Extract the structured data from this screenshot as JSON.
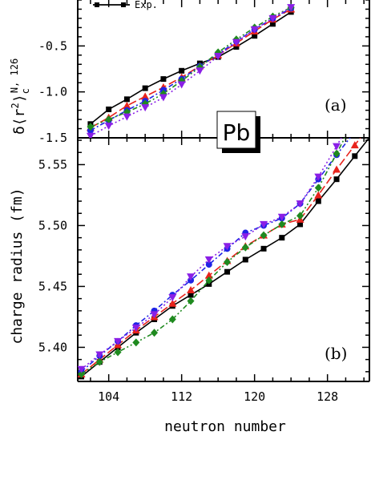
{
  "figure": {
    "element_label": "Pb",
    "xlabel": "neutron number",
    "legend": [
      "Exp."
    ]
  },
  "chart_data": [
    {
      "type": "line",
      "panel_tag": "(a)",
      "ylabel": "δ⟨r²⟩c^N,126",
      "ylabel_main": "δ⟨r",
      "ylabel_sup": "2",
      "ylabel_close": "⟩",
      "ylabel_sub": "c",
      "ylabel_super": "N, 126",
      "xlim": [
        100.6,
        132.6
      ],
      "ylim": [
        -1.5,
        0.0
      ],
      "yticks": [
        "-0.5",
        "-1.0",
        "-1.5"
      ],
      "ytick_values": [
        -0.5,
        -1.0,
        -1.5
      ],
      "series": [
        {
          "name": "Exp.",
          "color": "#000000",
          "marker": "square",
          "dash": "none",
          "x": [
            102,
            104,
            106,
            108,
            110,
            112,
            114,
            116,
            118,
            120,
            122,
            124
          ],
          "y": [
            -1.35,
            -1.19,
            -1.08,
            -0.96,
            -0.86,
            -0.77,
            -0.69,
            -0.62,
            -0.51,
            -0.39,
            -0.26,
            -0.13
          ]
        },
        {
          "color": "#e8231c",
          "marker": "triangle-up",
          "dash": "10,4",
          "x": [
            102,
            104,
            106,
            108,
            110,
            112,
            114,
            116,
            118,
            120,
            122,
            124
          ],
          "y": [
            -1.39,
            -1.28,
            -1.15,
            -1.05,
            -0.95,
            -0.84,
            -0.72,
            -0.6,
            -0.47,
            -0.34,
            -0.21,
            -0.1
          ]
        },
        {
          "color": "#1f23e6",
          "marker": "circle",
          "dash": "6,3,2,3",
          "x": [
            102,
            104,
            106,
            108,
            110,
            112,
            114,
            116,
            118,
            120,
            122,
            124
          ],
          "y": [
            -1.42,
            -1.31,
            -1.2,
            -1.1,
            -0.98,
            -0.86,
            -0.72,
            -0.59,
            -0.45,
            -0.32,
            -0.2,
            -0.09
          ]
        },
        {
          "color": "#1f8a1f",
          "marker": "diamond",
          "dash": "6,3,2,3,2,3",
          "x": [
            102,
            104,
            106,
            108,
            110,
            112,
            114,
            116,
            118,
            120,
            122,
            124
          ],
          "y": [
            -1.38,
            -1.3,
            -1.22,
            -1.13,
            -1.02,
            -0.88,
            -0.73,
            -0.57,
            -0.43,
            -0.3,
            -0.18,
            -0.08
          ]
        },
        {
          "color": "#8a1fe6",
          "marker": "triangle-down",
          "dash": "2,3",
          "x": [
            102,
            104,
            106,
            108,
            110,
            112,
            114,
            116,
            118,
            120,
            122,
            124
          ],
          "y": [
            -1.48,
            -1.37,
            -1.27,
            -1.17,
            -1.06,
            -0.92,
            -0.77,
            -0.61,
            -0.46,
            -0.32,
            -0.2,
            -0.08
          ]
        }
      ]
    },
    {
      "type": "line",
      "panel_tag": "(b)",
      "ylabel": "charge radius (fm)",
      "xlim": [
        100.6,
        132.6
      ],
      "ylim": [
        5.372,
        5.572
      ],
      "xticks": [
        "104",
        "112",
        "120",
        "128"
      ],
      "xtick_values": [
        104,
        112,
        120,
        128
      ],
      "yticks": [
        "5.40",
        "5.45",
        "5.50",
        "5.55"
      ],
      "ytick_values": [
        5.4,
        5.45,
        5.5,
        5.55
      ],
      "series": [
        {
          "name": "Exp.",
          "color": "#000000",
          "marker": "square",
          "dash": "none",
          "x": [
            101,
            103,
            105,
            107,
            109,
            111,
            113,
            115,
            117,
            119,
            121,
            123,
            125,
            127,
            129,
            131,
            133
          ],
          "y": [
            5.376,
            5.388,
            5.4,
            5.412,
            5.423,
            5.434,
            5.443,
            5.452,
            5.462,
            5.472,
            5.481,
            5.49,
            5.501,
            5.52,
            5.538,
            5.557,
            5.576
          ]
        },
        {
          "color": "#e8231c",
          "marker": "triangle-up",
          "dash": "10,4",
          "x": [
            101,
            103,
            105,
            107,
            109,
            111,
            113,
            115,
            117,
            119,
            121,
            123,
            125,
            127,
            129,
            131,
            133
          ],
          "y": [
            5.378,
            5.39,
            5.402,
            5.414,
            5.425,
            5.436,
            5.447,
            5.459,
            5.471,
            5.483,
            5.492,
            5.501,
            5.505,
            5.525,
            5.546,
            5.566,
            5.586
          ]
        },
        {
          "color": "#1f23e6",
          "marker": "circle",
          "dash": "6,3,2,3",
          "x": [
            101,
            103,
            105,
            107,
            109,
            111,
            113,
            115,
            117,
            119,
            121,
            123,
            125,
            127,
            129,
            131,
            133
          ],
          "y": [
            5.38,
            5.393,
            5.405,
            5.418,
            5.43,
            5.443,
            5.455,
            5.468,
            5.481,
            5.494,
            5.5,
            5.506,
            5.518,
            5.538,
            5.558,
            5.577,
            5.597
          ]
        },
        {
          "color": "#1f8a1f",
          "marker": "diamond",
          "dash": "6,3,2,3,2,3",
          "x": [
            101,
            103,
            105,
            107,
            109,
            111,
            113,
            115,
            117,
            119,
            121,
            123,
            125,
            127,
            129,
            131,
            133
          ],
          "y": [
            5.378,
            5.388,
            5.396,
            5.404,
            5.412,
            5.423,
            5.438,
            5.455,
            5.47,
            5.482,
            5.492,
            5.501,
            5.508,
            5.531,
            5.559,
            5.588,
            5.617
          ]
        },
        {
          "color": "#8a1fe6",
          "marker": "triangle-down",
          "dash": "2,3",
          "x": [
            101,
            103,
            105,
            107,
            109,
            111,
            113,
            115,
            117,
            119,
            121,
            123,
            125,
            127,
            129,
            131,
            133
          ],
          "y": [
            5.382,
            5.394,
            5.405,
            5.416,
            5.427,
            5.441,
            5.458,
            5.472,
            5.483,
            5.491,
            5.501,
            5.507,
            5.518,
            5.54,
            5.565,
            5.593,
            5.62
          ]
        }
      ]
    }
  ]
}
